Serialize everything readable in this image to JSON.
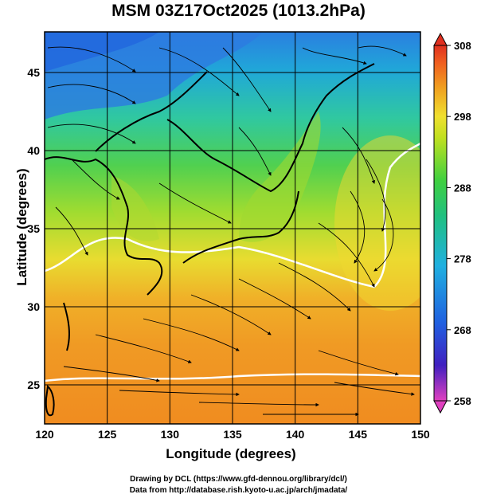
{
  "title": "MSM 03Z17Oct2025 (1013.2hPa)",
  "axes": {
    "xlabel": "Longitude (degrees)",
    "ylabel": "Latitude  (degrees)",
    "x_ticks": [
      "120",
      "125",
      "130",
      "135",
      "140",
      "145",
      "150"
    ],
    "y_ticks": [
      "25",
      "30",
      "35",
      "40",
      "45"
    ],
    "xlim": [
      120,
      150
    ],
    "ylim": [
      22.5,
      47.6
    ]
  },
  "colorbar": {
    "tick_labels": [
      "308",
      "298",
      "288",
      "278",
      "268",
      "258"
    ],
    "range": [
      258,
      308
    ],
    "colors": [
      "#e040c0",
      "#4020c0",
      "#2060e0",
      "#20b0e0",
      "#20c080",
      "#40d040",
      "#c0e020",
      "#f0e030",
      "#f0a020",
      "#f06020",
      "#e03020"
    ]
  },
  "credits": {
    "line1": "Drawing by DCL (https://www.gfd-dennou.org/library/dcl/)",
    "line2": "Data from http://database.rish.kyoto-u.ac.jp/arch/jmadata/"
  },
  "chart_data": {
    "type": "heatmap",
    "variable": "temperature field with streamlines",
    "units": "K",
    "x_range": [
      120,
      150
    ],
    "y_range": [
      22.5,
      47.6
    ],
    "color_range": [
      258,
      308
    ]
  }
}
